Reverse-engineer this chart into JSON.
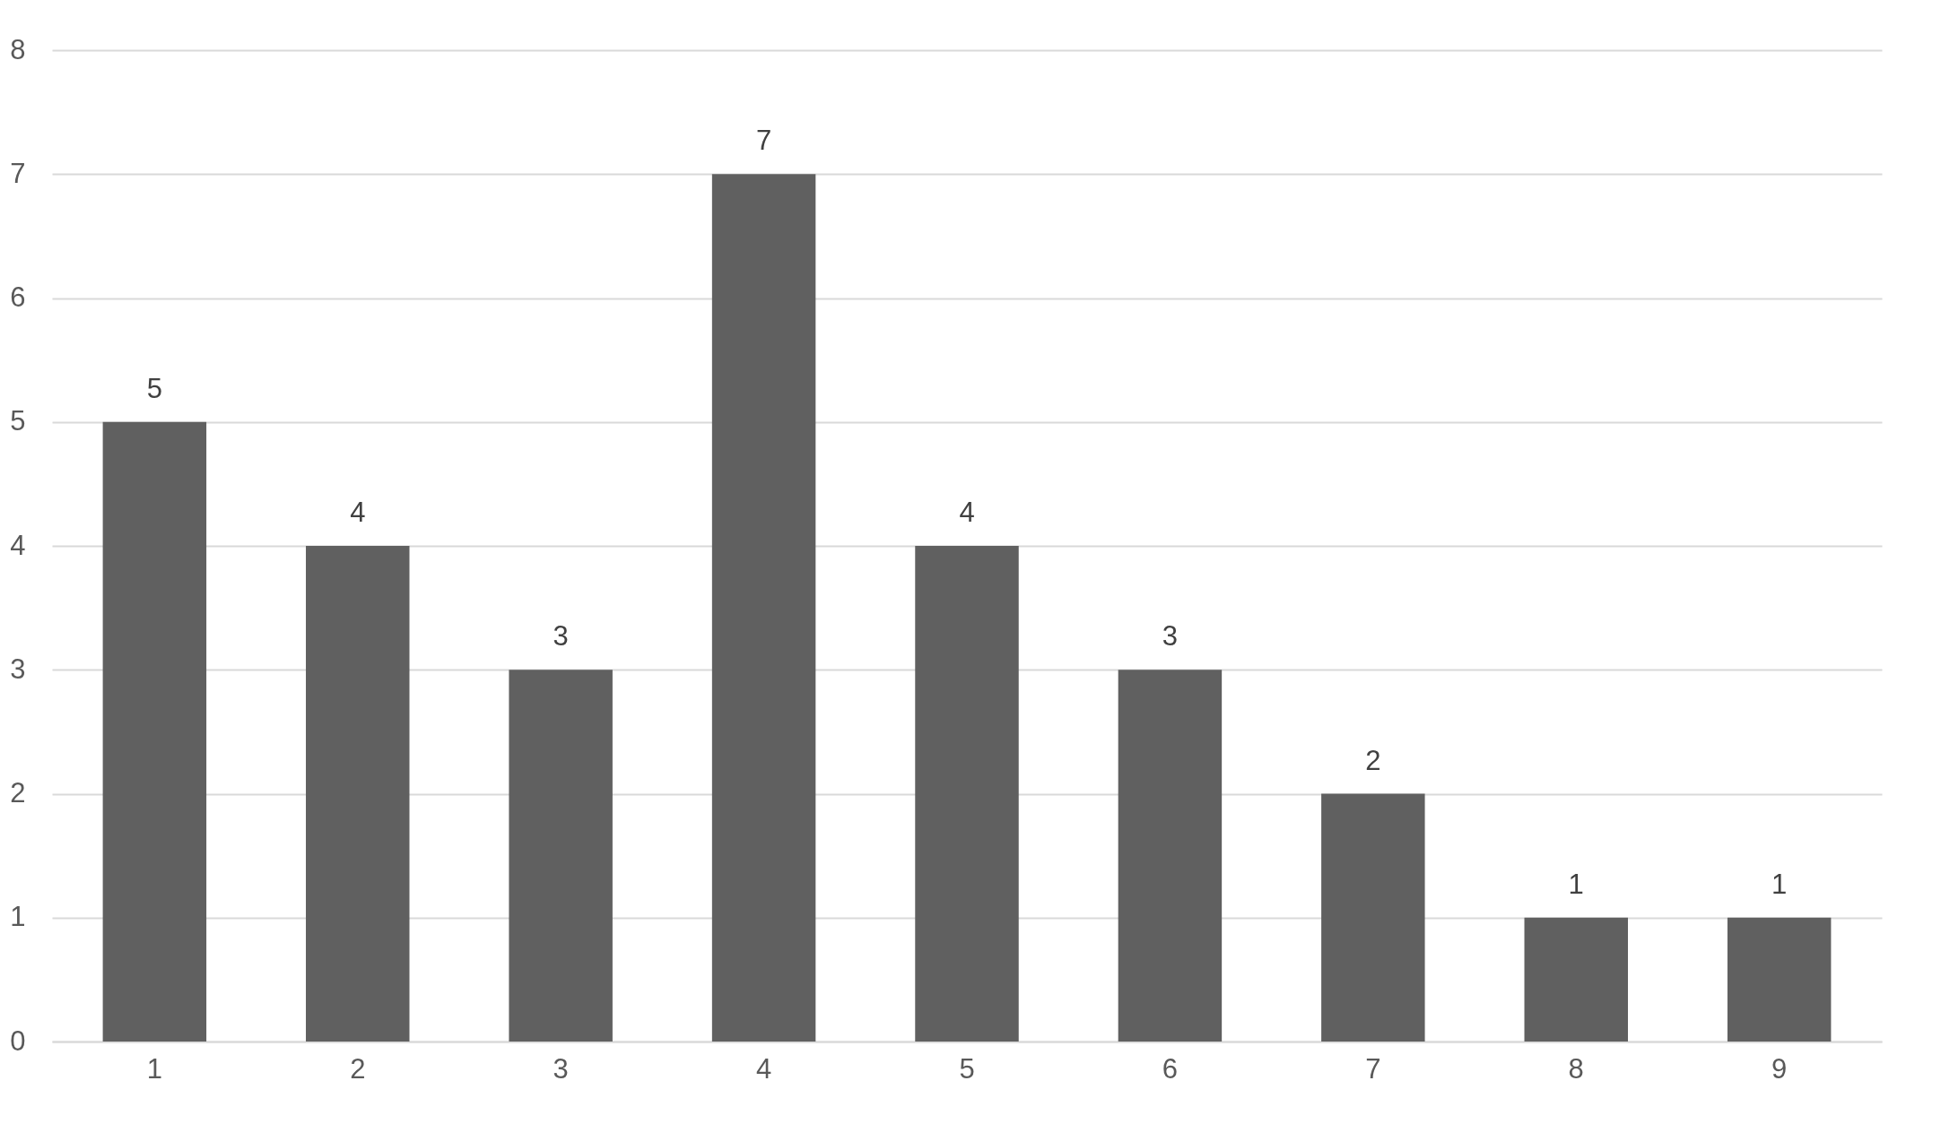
{
  "chart_data": {
    "type": "bar",
    "categories": [
      "1",
      "2",
      "3",
      "4",
      "5",
      "6",
      "7",
      "8",
      "9"
    ],
    "values": [
      5,
      4,
      3,
      7,
      4,
      3,
      2,
      1,
      1
    ],
    "color": "#606060",
    "ylim": [
      0,
      8
    ],
    "yticks": [
      0,
      1,
      2,
      3,
      4,
      5,
      6,
      7,
      8
    ],
    "grid": "y",
    "data_labels": true
  }
}
